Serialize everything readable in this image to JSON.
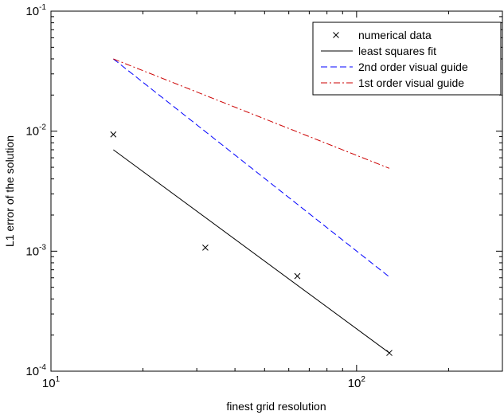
{
  "chart_data": {
    "type": "scatter",
    "xlabel": "finest grid resolution",
    "ylabel": "L1 error of the solution",
    "xscale": "log",
    "yscale": "log",
    "xlim": [
      10,
      300
    ],
    "ylim": [
      0.0001,
      0.1
    ],
    "grid": false,
    "legend_position": "top-right",
    "x_ticks": [
      {
        "base": "10",
        "exp": "1",
        "value": 10
      },
      {
        "base": "10",
        "exp": "2",
        "value": 100
      }
    ],
    "y_ticks": [
      {
        "base": "10",
        "exp": "-4",
        "value": 0.0001
      },
      {
        "base": "10",
        "exp": "-3",
        "value": 0.001
      },
      {
        "base": "10",
        "exp": "-2",
        "value": 0.01
      },
      {
        "base": "10",
        "exp": "-1",
        "value": 0.1
      }
    ],
    "series": [
      {
        "name": "numerical data",
        "kind": "marker",
        "marker": "x",
        "color": "#000000",
        "x": [
          16,
          32,
          64,
          128
        ],
        "y": [
          0.0094,
          0.00107,
          0.00062,
          0.000142
        ]
      },
      {
        "name": "least squares fit",
        "kind": "line",
        "dash": "solid",
        "color": "#000000",
        "x": [
          16,
          128
        ],
        "y": [
          0.007,
          0.000142
        ]
      },
      {
        "name": "2nd order visual guide",
        "kind": "line",
        "dash": "dashed",
        "color": "#0000ff",
        "x": [
          16,
          128
        ],
        "y": [
          0.04,
          0.00061
        ]
      },
      {
        "name": "1st order visual guide",
        "kind": "line",
        "dash": "dashdot",
        "color": "#cc0000",
        "x": [
          16,
          128
        ],
        "y": [
          0.04,
          0.0049
        ]
      }
    ]
  }
}
